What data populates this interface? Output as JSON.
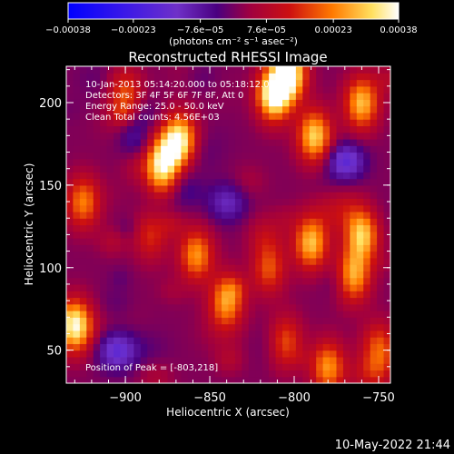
{
  "chart_data": {
    "type": "heatmap",
    "title": "Reconstructed RHESSI Image",
    "xlabel": "Heliocentric X (arcsec)",
    "ylabel": "Heliocentric Y (arcsec)",
    "xlim": [
      -935,
      -743
    ],
    "ylim": [
      30,
      222
    ],
    "x_ticks": [
      -900,
      -850,
      -800,
      -750
    ],
    "x_tick_labels": [
      "−900",
      "−850",
      "−800",
      "−750"
    ],
    "y_ticks": [
      50,
      100,
      150,
      200
    ],
    "y_tick_labels": [
      "50",
      "100",
      "150",
      "200"
    ],
    "colorbar": {
      "range": [
        -0.00038,
        0.00038
      ],
      "ticks": [
        -0.00038,
        -0.00023,
        -7.6e-05,
        7.6e-05,
        0.00023,
        0.00038
      ],
      "tick_labels": [
        "−0.00038",
        "−0.00023",
        "−7.6e−05",
        "7.6e−05",
        "0.00023",
        "0.00038"
      ],
      "units": "(photons cm⁻² s⁻¹ asec⁻²)",
      "colors": [
        "#0000ff",
        "#6f30c8",
        "#4a0080",
        "#cc1010",
        "#ff7a00",
        "#ffe060",
        "#ffffff"
      ]
    },
    "annotations": [
      "10-Jan-2013 05:14:20.000 to 05:18:12.000",
      "Detectors: 3F 4F 5F 6F 7F 8F, Att 0",
      "Energy Range: 25.0 - 50.0 keV",
      "Clean    Total counts: 4.56E+03"
    ],
    "peak_label": "Position of Peak = [-803,218]",
    "peak": [
      -803,
      218
    ],
    "bright_sources": [
      {
        "x": -878,
        "y": 160,
        "level": 0.00036
      },
      {
        "x": -868,
        "y": 178,
        "level": 0.00033
      },
      {
        "x": -812,
        "y": 205,
        "level": 0.00038
      },
      {
        "x": -803,
        "y": 218,
        "level": 0.00038
      },
      {
        "x": -788,
        "y": 180,
        "level": 0.0003
      },
      {
        "x": -760,
        "y": 200,
        "level": 0.00028
      },
      {
        "x": -760,
        "y": 120,
        "level": 0.00032
      },
      {
        "x": -765,
        "y": 95,
        "level": 0.00026
      },
      {
        "x": -930,
        "y": 65,
        "level": 0.00035
      },
      {
        "x": -925,
        "y": 140,
        "level": 0.00022
      },
      {
        "x": -858,
        "y": 108,
        "level": 0.00024
      },
      {
        "x": -840,
        "y": 80,
        "level": 0.00025
      },
      {
        "x": -815,
        "y": 100,
        "level": 0.00018
      },
      {
        "x": -790,
        "y": 115,
        "level": 0.00028
      },
      {
        "x": -805,
        "y": 55,
        "level": 0.0002
      },
      {
        "x": -780,
        "y": 40,
        "level": 0.00024
      },
      {
        "x": -750,
        "y": 50,
        "level": 0.00022
      },
      {
        "x": -900,
        "y": 205,
        "level": 0.00018
      },
      {
        "x": -885,
        "y": 120,
        "level": 0.00014
      }
    ],
    "negative_sources": [
      {
        "x": -770,
        "y": 165,
        "level": -0.00022
      },
      {
        "x": -905,
        "y": 50,
        "level": -0.00018
      },
      {
        "x": -840,
        "y": 140,
        "level": -0.00012
      },
      {
        "x": -893,
        "y": 180,
        "level": -0.0001
      }
    ]
  },
  "timestamp": "10-May-2022 21:44"
}
